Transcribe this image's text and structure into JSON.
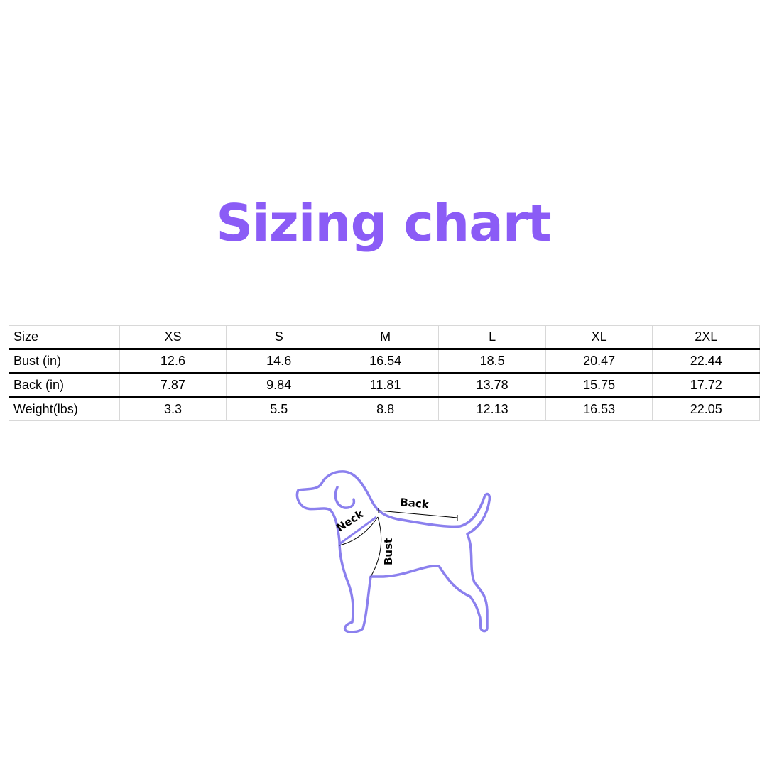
{
  "title": "Sizing chart",
  "accent_color": "#8b5cf6",
  "table": {
    "header": [
      "Size",
      "XS",
      "S",
      "M",
      "L",
      "XL",
      "2XL"
    ],
    "rows": [
      [
        "Bust (in)",
        "12.6",
        "14.6",
        "16.54",
        "18.5",
        "20.47",
        "22.44"
      ],
      [
        "Back (in)",
        "7.87",
        "9.84",
        "11.81",
        "13.78",
        "15.75",
        "17.72"
      ],
      [
        "Weight(lbs)",
        "3.3",
        "5.5",
        "8.8",
        "12.13",
        "16.53",
        "22.05"
      ]
    ]
  },
  "diagram": {
    "neck_label": "Neck",
    "back_label": "Back",
    "bust_label": "Bust"
  }
}
